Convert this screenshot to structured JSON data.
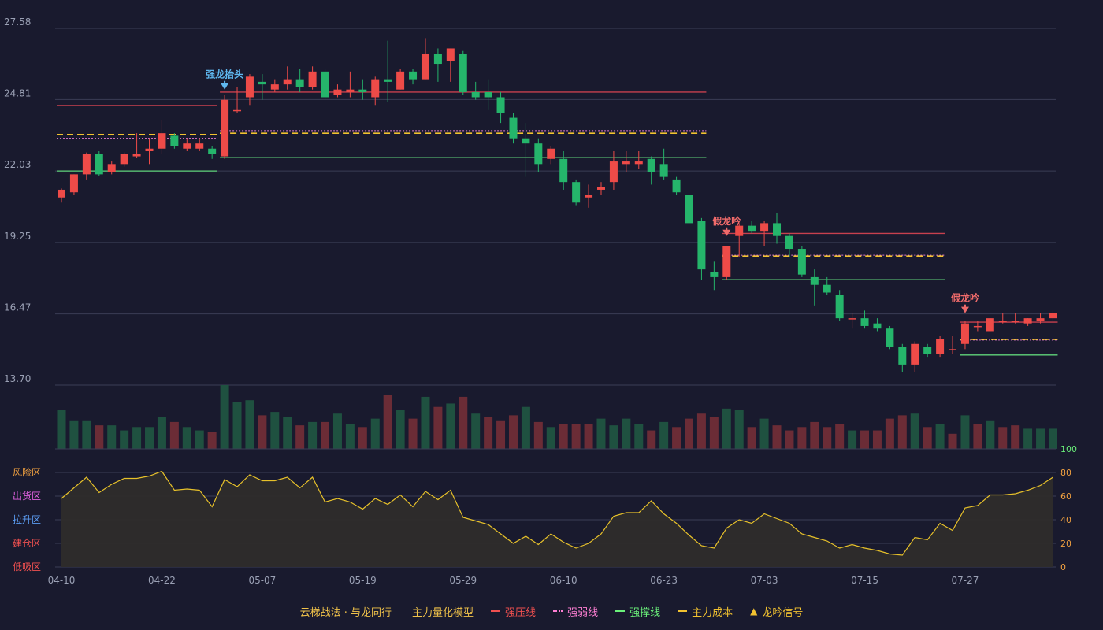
{
  "chart_data": {
    "type": "candlestick",
    "price_axis": {
      "ticks": [
        27.58,
        24.81,
        22.03,
        19.25,
        16.47,
        13.7
      ],
      "min": 13.7,
      "max": 27.58
    },
    "x_tick_labels": [
      {
        "index": 0,
        "label": "04-10"
      },
      {
        "index": 8,
        "label": "04-22"
      },
      {
        "index": 16,
        "label": "05-07"
      },
      {
        "index": 24,
        "label": "05-19"
      },
      {
        "index": 32,
        "label": "05-29"
      },
      {
        "index": 40,
        "label": "06-10"
      },
      {
        "index": 48,
        "label": "06-23"
      },
      {
        "index": 56,
        "label": "07-03"
      },
      {
        "index": 64,
        "label": "07-15"
      },
      {
        "index": 72,
        "label": "07-27"
      }
    ],
    "candles": [
      [
        21.0,
        21.3,
        20.8,
        21.35
      ],
      [
        21.2,
        21.9,
        21.1,
        21.9
      ],
      [
        21.9,
        22.7,
        21.7,
        22.75
      ],
      [
        22.7,
        21.9,
        21.85,
        22.8
      ],
      [
        22.0,
        22.3,
        21.9,
        22.4
      ],
      [
        22.3,
        22.7,
        22.2,
        22.75
      ],
      [
        22.6,
        22.7,
        22.55,
        23.5
      ],
      [
        22.8,
        22.9,
        22.3,
        23.3
      ],
      [
        22.9,
        23.5,
        22.7,
        24.0
      ],
      [
        23.4,
        23.0,
        22.9,
        23.5
      ],
      [
        22.9,
        23.1,
        22.8,
        23.3
      ],
      [
        22.9,
        23.1,
        22.8,
        23.3
      ],
      [
        22.9,
        22.7,
        22.5,
        23.0
      ],
      [
        22.6,
        24.8,
        22.5,
        25.0
      ],
      [
        24.4,
        24.4,
        24.3,
        25.3
      ],
      [
        24.9,
        25.7,
        24.6,
        25.8
      ],
      [
        25.5,
        25.4,
        24.8,
        25.8
      ],
      [
        25.2,
        25.4,
        25.1,
        25.6
      ],
      [
        25.4,
        25.6,
        25.2,
        26.1
      ],
      [
        25.6,
        25.3,
        25.1,
        26.0
      ],
      [
        25.3,
        25.9,
        25.2,
        26.1
      ],
      [
        25.9,
        24.9,
        24.8,
        26.0
      ],
      [
        25.0,
        25.2,
        24.9,
        25.4
      ],
      [
        25.1,
        25.2,
        24.9,
        25.9
      ],
      [
        25.2,
        25.1,
        24.8,
        25.6
      ],
      [
        24.9,
        25.6,
        24.6,
        25.7
      ],
      [
        25.6,
        25.5,
        24.7,
        27.1
      ],
      [
        25.2,
        25.9,
        25.2,
        26.0
      ],
      [
        25.9,
        25.6,
        25.4,
        26.0
      ],
      [
        25.6,
        26.6,
        25.6,
        27.2
      ],
      [
        26.6,
        26.2,
        25.5,
        26.8
      ],
      [
        26.3,
        26.8,
        25.5,
        26.8
      ],
      [
        26.6,
        25.1,
        25.0,
        26.7
      ],
      [
        25.1,
        24.9,
        24.8,
        25.5
      ],
      [
        25.1,
        24.9,
        24.4,
        25.6
      ],
      [
        24.9,
        24.3,
        23.9,
        25.1
      ],
      [
        24.1,
        23.3,
        23.1,
        24.3
      ],
      [
        23.3,
        23.1,
        21.8,
        23.9
      ],
      [
        23.1,
        22.3,
        22.0,
        23.3
      ],
      [
        22.5,
        22.9,
        22.3,
        23.0
      ],
      [
        22.5,
        21.6,
        21.3,
        22.8
      ],
      [
        21.6,
        20.8,
        20.7,
        21.7
      ],
      [
        21.0,
        21.1,
        20.6,
        21.5
      ],
      [
        21.3,
        21.4,
        21.1,
        21.6
      ],
      [
        21.6,
        22.4,
        21.3,
        22.8
      ],
      [
        22.3,
        22.4,
        22.0,
        22.8
      ],
      [
        22.3,
        22.4,
        22.1,
        22.8
      ],
      [
        22.5,
        22.0,
        21.5,
        22.6
      ],
      [
        22.3,
        21.8,
        21.7,
        22.9
      ],
      [
        21.7,
        21.2,
        21.1,
        21.8
      ],
      [
        21.1,
        20.0,
        19.9,
        21.2
      ],
      [
        20.1,
        18.2,
        17.8,
        20.2
      ],
      [
        18.1,
        17.9,
        17.4,
        18.5
      ],
      [
        17.9,
        19.1,
        17.8,
        19.1
      ],
      [
        19.5,
        19.9,
        18.7,
        20.0
      ],
      [
        19.9,
        19.7,
        19.6,
        20.1
      ],
      [
        19.7,
        20.0,
        19.1,
        20.1
      ],
      [
        20.0,
        19.5,
        19.2,
        20.4
      ],
      [
        19.5,
        19.0,
        18.7,
        19.6
      ],
      [
        19.0,
        18.0,
        17.9,
        19.1
      ],
      [
        17.9,
        17.6,
        16.8,
        18.2
      ],
      [
        17.6,
        17.3,
        17.2,
        17.9
      ],
      [
        17.2,
        16.3,
        16.2,
        17.4
      ],
      [
        16.3,
        16.3,
        15.9,
        16.5
      ],
      [
        16.3,
        16.0,
        15.9,
        16.6
      ],
      [
        16.1,
        15.9,
        15.8,
        16.3
      ],
      [
        15.9,
        15.2,
        15.1,
        16.0
      ],
      [
        15.2,
        14.5,
        14.2,
        15.3
      ],
      [
        14.5,
        15.3,
        14.2,
        15.4
      ],
      [
        15.2,
        14.9,
        14.8,
        15.3
      ],
      [
        14.9,
        15.5,
        14.8,
        15.6
      ],
      [
        15.1,
        15.1,
        14.9,
        15.6
      ],
      [
        15.3,
        16.1,
        15.1,
        16.2
      ],
      [
        16.0,
        16.0,
        15.8,
        16.2
      ],
      [
        15.8,
        16.3,
        15.8,
        16.3
      ],
      [
        16.2,
        16.2,
        16.1,
        16.5
      ],
      [
        16.2,
        16.2,
        16.1,
        16.5
      ],
      [
        16.1,
        16.3,
        16.0,
        16.3
      ],
      [
        16.2,
        16.3,
        16.1,
        16.5
      ],
      [
        16.3,
        16.5,
        16.2,
        16.6
      ]
    ],
    "volume": [
      [
        23,
        "down"
      ],
      [
        17,
        "down"
      ],
      [
        17,
        "down"
      ],
      [
        14,
        "up"
      ],
      [
        14,
        "down"
      ],
      [
        11,
        "down"
      ],
      [
        13,
        "down"
      ],
      [
        13,
        "down"
      ],
      [
        19,
        "down"
      ],
      [
        16,
        "up"
      ],
      [
        13,
        "down"
      ],
      [
        11,
        "down"
      ],
      [
        10,
        "up"
      ],
      [
        38,
        "down"
      ],
      [
        28,
        "down"
      ],
      [
        29,
        "down"
      ],
      [
        20,
        "up"
      ],
      [
        22,
        "down"
      ],
      [
        19,
        "down"
      ],
      [
        14,
        "up"
      ],
      [
        16,
        "down"
      ],
      [
        16,
        "up"
      ],
      [
        21,
        "down"
      ],
      [
        15,
        "down"
      ],
      [
        13,
        "up"
      ],
      [
        18,
        "down"
      ],
      [
        32,
        "up"
      ],
      [
        23,
        "down"
      ],
      [
        18,
        "up"
      ],
      [
        31,
        "down"
      ],
      [
        25,
        "up"
      ],
      [
        27,
        "down"
      ],
      [
        31,
        "up"
      ],
      [
        21,
        "down"
      ],
      [
        19,
        "up"
      ],
      [
        17,
        "up"
      ],
      [
        20,
        "up"
      ],
      [
        25,
        "down"
      ],
      [
        16,
        "up"
      ],
      [
        13,
        "down"
      ],
      [
        15,
        "up"
      ],
      [
        15,
        "up"
      ],
      [
        15,
        "up"
      ],
      [
        18,
        "down"
      ],
      [
        14,
        "down"
      ],
      [
        18,
        "down"
      ],
      [
        15,
        "down"
      ],
      [
        11,
        "up"
      ],
      [
        16,
        "down"
      ],
      [
        13,
        "up"
      ],
      [
        18,
        "up"
      ],
      [
        21,
        "up"
      ],
      [
        19,
        "up"
      ],
      [
        24,
        "down"
      ],
      [
        23,
        "down"
      ],
      [
        13,
        "up"
      ],
      [
        18,
        "down"
      ],
      [
        14,
        "up"
      ],
      [
        11,
        "up"
      ],
      [
        13,
        "up"
      ],
      [
        16,
        "up"
      ],
      [
        13,
        "up"
      ],
      [
        15,
        "up"
      ],
      [
        11,
        "down"
      ],
      [
        11,
        "up"
      ],
      [
        11,
        "up"
      ],
      [
        18,
        "up"
      ],
      [
        20,
        "up"
      ],
      [
        21,
        "down"
      ],
      [
        13,
        "up"
      ],
      [
        15,
        "down"
      ],
      [
        9,
        "up"
      ],
      [
        20,
        "down"
      ],
      [
        15,
        "up"
      ],
      [
        17,
        "down"
      ],
      [
        13,
        "up"
      ],
      [
        14,
        "up"
      ],
      [
        12,
        "down"
      ],
      [
        12,
        "down"
      ],
      [
        12,
        "down"
      ]
    ],
    "oscillator": {
      "axis_ticks": [
        0,
        20,
        40,
        60,
        80,
        100
      ],
      "zone_labels": [
        "风险区",
        "出货区",
        "拉升区",
        "建仓区",
        "低吸区"
      ],
      "values": [
        58,
        67,
        76,
        63,
        70,
        75,
        75,
        77,
        81,
        65,
        66,
        65,
        51,
        74,
        68,
        78,
        73,
        73,
        76,
        67,
        76,
        55,
        58,
        55,
        49,
        58,
        53,
        61,
        51,
        64,
        57,
        65,
        42,
        39,
        36,
        28,
        20,
        26,
        19,
        28,
        21,
        16,
        20,
        28,
        43,
        46,
        46,
        56,
        45,
        37,
        27,
        18,
        16,
        33,
        40,
        37,
        45,
        41,
        37,
        28,
        25,
        22,
        16,
        19,
        16,
        14,
        11,
        10,
        25,
        23,
        37,
        31,
        50,
        52,
        61,
        61,
        62,
        65,
        69,
        76
      ]
    },
    "annotations": [
      {
        "index": 13,
        "text": "强龙抬头",
        "kind": "up",
        "ref_price": 24.8
      },
      {
        "index": 53,
        "text": "假龙吟",
        "kind": "down",
        "ref_price": 19.1
      },
      {
        "index": 72,
        "text": "假龙吟",
        "kind": "down",
        "ref_price": 16.1
      }
    ],
    "level_segments": [
      {
        "start": 0,
        "end": 12,
        "resistance": 24.58,
        "weak": 23.3,
        "cost": 23.45,
        "support": 22.03
      },
      {
        "start": 13,
        "end": 51,
        "resistance": 25.1,
        "weak": 23.6,
        "cost": 23.5,
        "support": 22.55
      },
      {
        "start": 53,
        "end": 70,
        "resistance": 19.6,
        "weak": 18.75,
        "cost": 18.72,
        "support": 17.8
      },
      {
        "start": 72,
        "end": 79,
        "resistance": 16.15,
        "weak": 15.45,
        "cost": 15.48,
        "support": 14.87
      }
    ],
    "legend": [
      {
        "name": "云梯战法 · 与龙同行——主力量化模型",
        "color": "#f0c24a",
        "marker": "none"
      },
      {
        "name": "强压线",
        "color": "#f05050",
        "marker": "solid"
      },
      {
        "name": "强弱线",
        "color": "#ff7fd4",
        "marker": "dotted"
      },
      {
        "name": "强撑线",
        "color": "#6af07a",
        "marker": "solid"
      },
      {
        "name": "主力成本",
        "color": "#f2c230",
        "marker": "dashed"
      },
      {
        "name": "龙吟信号",
        "color": "#f2c230",
        "marker": "triangle"
      }
    ],
    "colors": {
      "up": "#ee4b48",
      "down": "#25b56b",
      "vol_up": "#6b2c36",
      "vol_down": "#1f5140",
      "resistance": "#c8404e",
      "weak": "#e07ad0",
      "cost": "#f2c230",
      "support": "#5fd37a",
      "grid": "#3a3d55",
      "osc_line": "#e7c12a",
      "osc_fill": "#2e2c2b",
      "signal_up": "#5fb8f0",
      "signal_down": "#f06b6b",
      "zone_risk": "#f0a040",
      "zone_distribute": "#e060e0",
      "zone_lift": "#5a9bf0",
      "zone_build": "#f05050",
      "zone_low": "#f05050",
      "axis_top": "#6af07a"
    }
  }
}
